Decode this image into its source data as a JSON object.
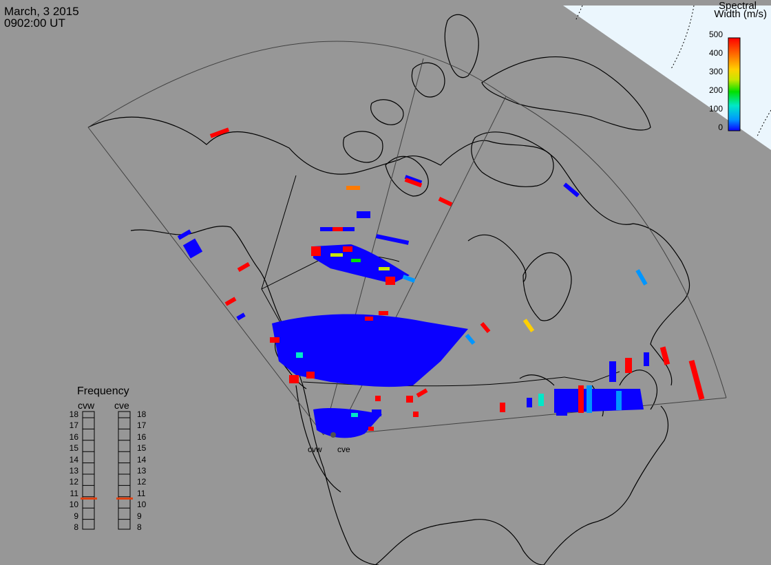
{
  "header": {
    "date": "March, 3 2015",
    "time": "0902:00 UT"
  },
  "colorbar": {
    "title_line1": "Spectral",
    "title_line2": "Width (m/s)",
    "ticks": [
      "500",
      "400",
      "300",
      "200",
      "100",
      "0"
    ],
    "range": [
      0,
      500
    ],
    "colors": [
      "#0a00ff",
      "#0096ff",
      "#00e8c8",
      "#00e000",
      "#c8e600",
      "#ffd000",
      "#ff7a00",
      "#ff0000"
    ]
  },
  "frequency_panel": {
    "title": "Frequency",
    "radars": [
      {
        "name": "cvw",
        "frequency_mhz": 10.6
      },
      {
        "name": "cve",
        "frequency_mhz": 10.6
      }
    ],
    "ticks": [
      "18",
      "17",
      "16",
      "15",
      "14",
      "13",
      "12",
      "11",
      "10",
      "9",
      "8"
    ]
  },
  "sites": [
    {
      "name": "cvw"
    },
    {
      "name": "cve"
    }
  ],
  "colors": {
    "land": "#979797",
    "polar_cap": "#ebf6fd",
    "coast": "#000000",
    "fov": "#404040",
    "freq_marker": "#e04010"
  }
}
